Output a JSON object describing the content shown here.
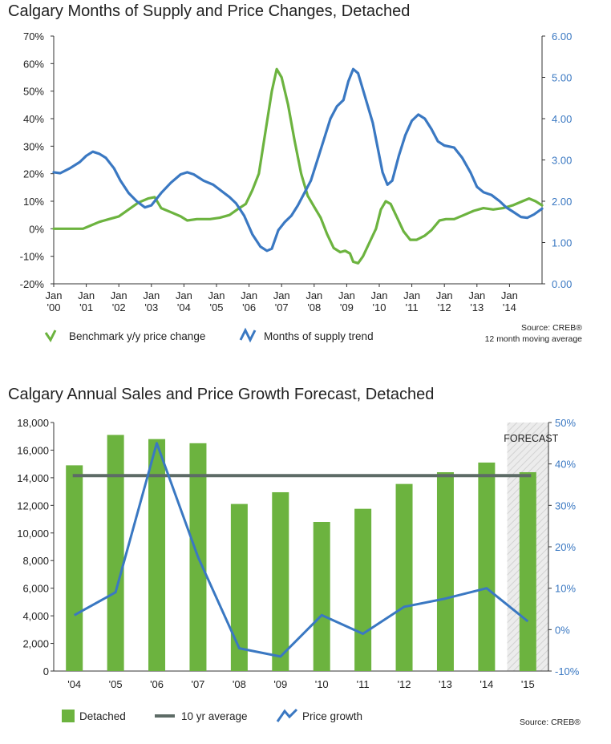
{
  "colors": {
    "green": "#6cb33f",
    "blue": "#3a78c2",
    "gray": "#5d6b66",
    "axis_blue": "#3a78c2"
  },
  "chart_data": [
    {
      "type": "line",
      "title": "Calgary Months of Supply and Price Changes, Detached",
      "x_labels": [
        [
          "Jan",
          "'00"
        ],
        [
          "Jan",
          "'01"
        ],
        [
          "Jan",
          "'02"
        ],
        [
          "Jan",
          "'03"
        ],
        [
          "Jan",
          "'04"
        ],
        [
          "Jan",
          "'05"
        ],
        [
          "Jan",
          "'06"
        ],
        [
          "Jan",
          "'07"
        ],
        [
          "Jan",
          "'08"
        ],
        [
          "Jan",
          "'09"
        ],
        [
          "Jan",
          "'10"
        ],
        [
          "Jan",
          "'11"
        ],
        [
          "Jan",
          "'12"
        ],
        [
          "Jan",
          "'13"
        ],
        [
          "Jan",
          "'14"
        ]
      ],
      "x_range": [
        2000,
        2015
      ],
      "y_left": {
        "ticks": [
          "70%",
          "60%",
          "50%",
          "40%",
          "30%",
          "20%",
          "10%",
          "0%",
          "-10%",
          "-20%"
        ],
        "ylim": [
          -20,
          70
        ]
      },
      "y_right": {
        "ticks": [
          "6.00",
          "5.00",
          "4.00",
          "3.00",
          "2.00",
          "1.00",
          "0.00"
        ],
        "ylim": [
          0,
          6
        ]
      },
      "series": [
        {
          "name": "Benchmark y/y price change",
          "axis": "left",
          "color_key": "green",
          "points": [
            [
              2000.0,
              0
            ],
            [
              2000.5,
              0
            ],
            [
              2000.9,
              0
            ],
            [
              2001.1,
              1
            ],
            [
              2001.4,
              2.5
            ],
            [
              2001.7,
              3.5
            ],
            [
              2002.0,
              4.5
            ],
            [
              2002.3,
              7
            ],
            [
              2002.6,
              9.5
            ],
            [
              2002.9,
              11
            ],
            [
              2003.1,
              11.5
            ],
            [
              2003.3,
              7.5
            ],
            [
              2003.6,
              6
            ],
            [
              2003.9,
              4.5
            ],
            [
              2004.1,
              3
            ],
            [
              2004.4,
              3.5
            ],
            [
              2004.8,
              3.5
            ],
            [
              2005.1,
              4
            ],
            [
              2005.4,
              5
            ],
            [
              2005.7,
              7.5
            ],
            [
              2005.9,
              9
            ],
            [
              2006.1,
              14
            ],
            [
              2006.3,
              20
            ],
            [
              2006.5,
              35
            ],
            [
              2006.7,
              50
            ],
            [
              2006.85,
              58
            ],
            [
              2007.0,
              55
            ],
            [
              2007.2,
              45
            ],
            [
              2007.4,
              32
            ],
            [
              2007.6,
              20
            ],
            [
              2007.8,
              12
            ],
            [
              2008.0,
              8
            ],
            [
              2008.2,
              4
            ],
            [
              2008.4,
              -2
            ],
            [
              2008.6,
              -7
            ],
            [
              2008.8,
              -8.5
            ],
            [
              2008.95,
              -8
            ],
            [
              2009.1,
              -9
            ],
            [
              2009.2,
              -12
            ],
            [
              2009.35,
              -12.5
            ],
            [
              2009.5,
              -10
            ],
            [
              2009.7,
              -5
            ],
            [
              2009.9,
              0
            ],
            [
              2010.05,
              7
            ],
            [
              2010.2,
              10
            ],
            [
              2010.35,
              9
            ],
            [
              2010.55,
              4
            ],
            [
              2010.75,
              -1
            ],
            [
              2010.95,
              -4
            ],
            [
              2011.15,
              -4
            ],
            [
              2011.4,
              -2.5
            ],
            [
              2011.6,
              -0.5
            ],
            [
              2011.85,
              3
            ],
            [
              2012.05,
              3.5
            ],
            [
              2012.3,
              3.5
            ],
            [
              2012.6,
              5
            ],
            [
              2012.9,
              6.5
            ],
            [
              2013.2,
              7.5
            ],
            [
              2013.5,
              7
            ],
            [
              2013.8,
              7.5
            ],
            [
              2014.1,
              8.5
            ],
            [
              2014.4,
              10
            ],
            [
              2014.6,
              11
            ],
            [
              2014.8,
              10
            ],
            [
              2015.0,
              8.5
            ]
          ]
        },
        {
          "name": "Months of supply trend",
          "axis": "right",
          "color_key": "blue",
          "points": [
            [
              2000.0,
              2.7
            ],
            [
              2000.2,
              2.68
            ],
            [
              2000.5,
              2.8
            ],
            [
              2000.8,
              2.95
            ],
            [
              2001.0,
              3.1
            ],
            [
              2001.2,
              3.2
            ],
            [
              2001.4,
              3.15
            ],
            [
              2001.6,
              3.05
            ],
            [
              2001.85,
              2.8
            ],
            [
              2002.05,
              2.5
            ],
            [
              2002.3,
              2.2
            ],
            [
              2002.55,
              2.0
            ],
            [
              2002.8,
              1.85
            ],
            [
              2003.0,
              1.9
            ],
            [
              2003.3,
              2.2
            ],
            [
              2003.6,
              2.45
            ],
            [
              2003.9,
              2.65
            ],
            [
              2004.1,
              2.7
            ],
            [
              2004.3,
              2.65
            ],
            [
              2004.6,
              2.5
            ],
            [
              2004.9,
              2.4
            ],
            [
              2005.15,
              2.25
            ],
            [
              2005.4,
              2.1
            ],
            [
              2005.6,
              1.95
            ],
            [
              2005.85,
              1.65
            ],
            [
              2006.1,
              1.2
            ],
            [
              2006.35,
              0.9
            ],
            [
              2006.55,
              0.8
            ],
            [
              2006.7,
              0.85
            ],
            [
              2006.9,
              1.3
            ],
            [
              2007.1,
              1.5
            ],
            [
              2007.3,
              1.65
            ],
            [
              2007.5,
              1.9
            ],
            [
              2007.7,
              2.2
            ],
            [
              2007.9,
              2.5
            ],
            [
              2008.1,
              3.0
            ],
            [
              2008.3,
              3.5
            ],
            [
              2008.5,
              4.0
            ],
            [
              2008.7,
              4.3
            ],
            [
              2008.9,
              4.45
            ],
            [
              2009.05,
              4.9
            ],
            [
              2009.2,
              5.2
            ],
            [
              2009.35,
              5.1
            ],
            [
              2009.5,
              4.7
            ],
            [
              2009.65,
              4.3
            ],
            [
              2009.8,
              3.9
            ],
            [
              2009.95,
              3.3
            ],
            [
              2010.1,
              2.7
            ],
            [
              2010.25,
              2.4
            ],
            [
              2010.4,
              2.5
            ],
            [
              2010.6,
              3.1
            ],
            [
              2010.8,
              3.6
            ],
            [
              2011.0,
              3.95
            ],
            [
              2011.2,
              4.1
            ],
            [
              2011.4,
              4.0
            ],
            [
              2011.6,
              3.75
            ],
            [
              2011.8,
              3.45
            ],
            [
              2012.0,
              3.35
            ],
            [
              2012.3,
              3.3
            ],
            [
              2012.55,
              3.05
            ],
            [
              2012.8,
              2.7
            ],
            [
              2013.0,
              2.35
            ],
            [
              2013.2,
              2.22
            ],
            [
              2013.45,
              2.15
            ],
            [
              2013.7,
              2.0
            ],
            [
              2013.9,
              1.85
            ],
            [
              2014.1,
              1.75
            ],
            [
              2014.35,
              1.62
            ],
            [
              2014.55,
              1.6
            ],
            [
              2014.75,
              1.68
            ],
            [
              2015.0,
              1.82
            ]
          ]
        }
      ],
      "legend": [
        "Benchmark y/y price change",
        "Months of supply trend"
      ],
      "source_lines": [
        "Source: CREB®",
        "12 month moving average"
      ]
    },
    {
      "type": "bar+line",
      "title": "Calgary Annual Sales and Price Growth Forecast, Detached",
      "categories": [
        "'04",
        "'05",
        "'06",
        "'07",
        "'08",
        "'09",
        "'10",
        "'11",
        "'12",
        "'13",
        "'14",
        "'15"
      ],
      "y_left": {
        "ticks": [
          "18,000",
          "16,000",
          "14,000",
          "12,000",
          "10,000",
          "8,000",
          "6,000",
          "4,000",
          "2,000",
          "0"
        ],
        "ylim": [
          0,
          18000
        ]
      },
      "y_right": {
        "ticks": [
          "50%",
          "40%",
          "30%",
          "20%",
          "10%",
          "0%",
          "-10%"
        ],
        "ylim": [
          -10,
          50
        ]
      },
      "series": [
        {
          "name": "Detached",
          "type": "bar",
          "axis": "left",
          "color_key": "green",
          "values": [
            14900,
            17100,
            16800,
            16500,
            12100,
            12950,
            10800,
            11750,
            13550,
            14400,
            15100,
            14400
          ]
        },
        {
          "name": "10 yr average",
          "type": "hline",
          "axis": "left",
          "color_key": "gray",
          "value": 14150
        },
        {
          "name": "Price growth",
          "type": "line",
          "axis": "right",
          "color_key": "blue",
          "values": [
            3.5,
            9,
            45,
            17.5,
            -4.5,
            -6.5,
            3.5,
            -1,
            5.5,
            7.5,
            10,
            2
          ]
        }
      ],
      "forecast_label": "FORECAST",
      "forecast_categories": [
        "'15"
      ],
      "legend": [
        "Detached",
        "10 yr average",
        "Price growth"
      ],
      "source_lines": [
        "Source: CREB®"
      ]
    }
  ]
}
